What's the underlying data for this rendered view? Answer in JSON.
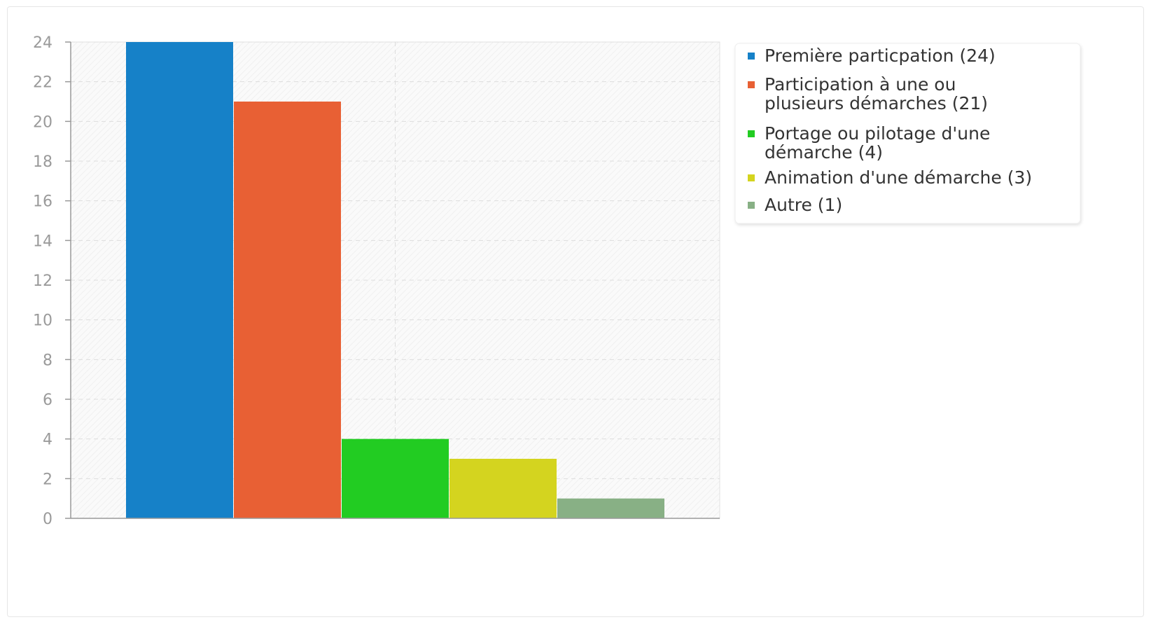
{
  "chart_data": {
    "type": "bar",
    "title": "",
    "xlabel": "",
    "ylabel": "",
    "ylim": [
      0,
      24
    ],
    "yticks": [
      0,
      2,
      4,
      6,
      8,
      10,
      12,
      14,
      16,
      18,
      20,
      22,
      24
    ],
    "grid": true,
    "legend_position": "right",
    "categories": [
      "Première particpation",
      "Participation à une ou plusieurs démarches",
      "Portage ou pilotage d'une démarche",
      "Animation d'une démarche",
      "Autre"
    ],
    "values": [
      24,
      21,
      4,
      3,
      1
    ],
    "colors": [
      "#1681c8",
      "#e86034",
      "#22cc22",
      "#d4d41f",
      "#88b085"
    ],
    "legend": [
      {
        "lines": [
          "Première particpation (24)"
        ]
      },
      {
        "lines": [
          "Participation à une ou",
          "plusieurs démarches (21)"
        ]
      },
      {
        "lines": [
          "Portage ou pilotage d'une",
          "démarche (4)"
        ]
      },
      {
        "lines": [
          "Animation d'une démarche (3)"
        ]
      },
      {
        "lines": [
          "Autre (1)"
        ]
      }
    ]
  }
}
